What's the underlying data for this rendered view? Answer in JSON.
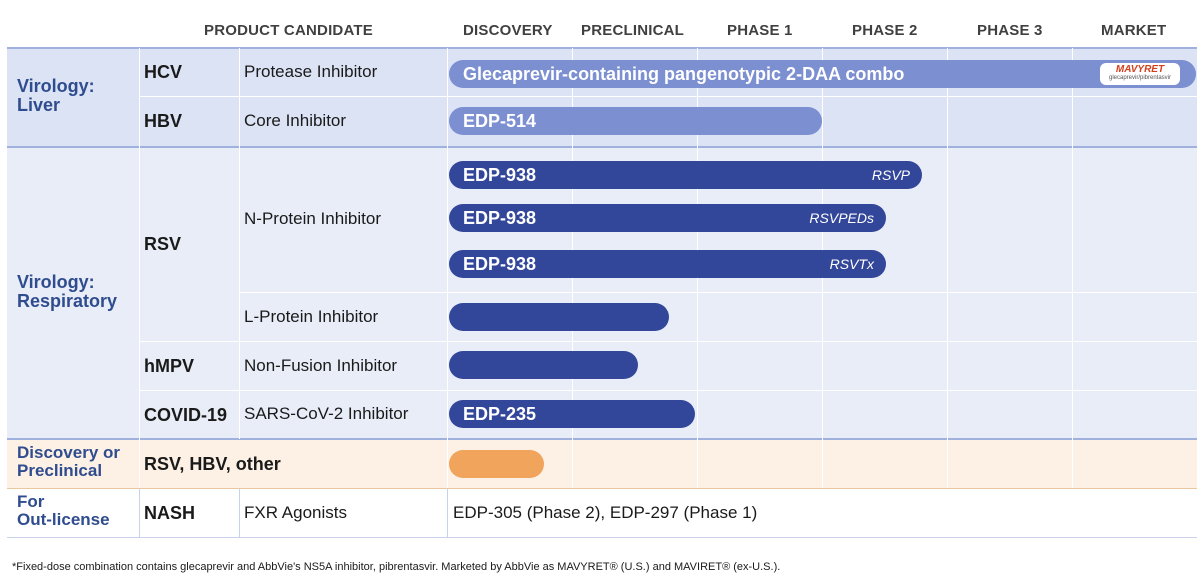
{
  "header": {
    "product_candidate": "PRODUCT CANDIDATE",
    "discovery": "DISCOVERY",
    "preclinical": "PRECLINICAL",
    "phase1": "PHASE 1",
    "phase2": "PHASE 2",
    "phase3": "PHASE 3",
    "market": "MARKET"
  },
  "groups": {
    "liver": "Virology:\nLiver",
    "respiratory": "Virology:\nRespiratory",
    "discovery": "Discovery or\nPreclinical",
    "outlicense": "For\nOut-license"
  },
  "rows": {
    "hcv": {
      "disease": "HCV",
      "mechanism": "Protease Inhibitor",
      "program": "Glecaprevir-containing pangenotypic 2-DAA combo",
      "badge_title": "MAVYRET",
      "badge_sub": "glecaprevir/pibrentasvir"
    },
    "hbv": {
      "disease": "HBV",
      "mechanism": "Core Inhibitor",
      "program": "EDP-514"
    },
    "rsv": {
      "disease": "RSV",
      "mechanism_n": "N-Protein Inhibitor",
      "mechanism_l": "L-Protein Inhibitor",
      "program1": "EDP-938",
      "tag1": "RSVP",
      "program2": "EDP-938",
      "tag2": "RSVPEDs",
      "program3": "EDP-938",
      "tag3": "RSVTx"
    },
    "hmpv": {
      "disease": "hMPV",
      "mechanism": "Non-Fusion Inhibitor"
    },
    "covid": {
      "disease": "COVID-19",
      "mechanism": "SARS-CoV-2 Inhibitor",
      "program": "EDP-235"
    },
    "discovery": {
      "disease": "RSV, HBV, other"
    },
    "nash": {
      "disease": "NASH",
      "mechanism": "FXR Agonists",
      "programs": "EDP-305 (Phase 2), EDP-297 (Phase 1)"
    }
  },
  "footnote": "*Fixed-dose combination contains glecaprevir  and AbbVie's NS5A inhibitor, pibrentasvir.  Marketed by AbbVie as MAVYRET® (U.S.) and MAVIRET® (ex-U.S.).",
  "colors": {
    "liver_band": "#dce3f5",
    "resp_band": "#e8edf8",
    "disc_band": "#fcf1e4",
    "dark_bar": "#33479a",
    "light_bar": "#7b8fd1",
    "orange_bar": "#f0a45c",
    "group_text": "#2f4c8f"
  },
  "chart_data": {
    "type": "table",
    "stages": [
      "DISCOVERY",
      "PRECLINICAL",
      "PHASE 1",
      "PHASE 2",
      "PHASE 3",
      "MARKET"
    ],
    "programs": [
      {
        "disease": "HCV",
        "mechanism": "Protease Inhibitor",
        "name": "Glecaprevir-containing pangenotypic 2-DAA combo",
        "stage_reached": "MARKET"
      },
      {
        "disease": "HBV",
        "mechanism": "Core Inhibitor",
        "name": "EDP-514",
        "stage_progress": 3.0
      },
      {
        "disease": "RSV",
        "mechanism": "N-Protein Inhibitor",
        "name": "EDP-938",
        "tag": "RSVP",
        "stage_progress": 3.8
      },
      {
        "disease": "RSV",
        "mechanism": "N-Protein Inhibitor",
        "name": "EDP-938",
        "tag": "RSVPEDs",
        "stage_progress": 3.5
      },
      {
        "disease": "RSV",
        "mechanism": "N-Protein Inhibitor",
        "name": "EDP-938",
        "tag": "RSVTx",
        "stage_progress": 3.5
      },
      {
        "disease": "RSV",
        "mechanism": "L-Protein Inhibitor",
        "name": "",
        "stage_progress": 1.8
      },
      {
        "disease": "hMPV",
        "mechanism": "Non-Fusion Inhibitor",
        "name": "",
        "stage_progress": 1.55
      },
      {
        "disease": "COVID-19",
        "mechanism": "SARS-CoV-2 Inhibitor",
        "name": "EDP-235",
        "stage_progress": 2.0
      },
      {
        "disease": "RSV, HBV, other",
        "mechanism": "",
        "name": "",
        "stage_progress": 0.8
      }
    ]
  }
}
